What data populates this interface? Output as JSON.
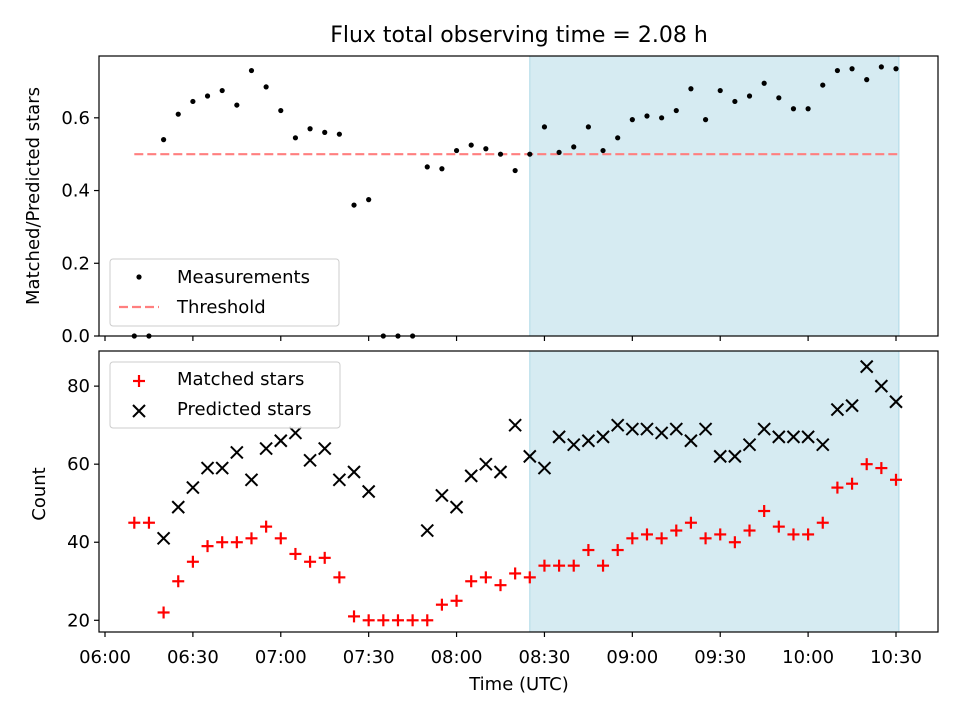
{
  "title": "Flux total observing time = 2.08 h",
  "xlabel": "Time (UTC)",
  "x_ticks": [
    "06:00",
    "06:30",
    "07:00",
    "07:30",
    "08:00",
    "08:30",
    "09:00",
    "09:30",
    "10:00",
    "10:30"
  ],
  "colors": {
    "shade": "#add8e6",
    "threshold": "#ff7f7f",
    "matched": "#ff0000",
    "predicted": "#000000"
  },
  "chart_data": [
    {
      "type": "scatter",
      "panel": "top",
      "ylabel": "Matched/Predicted stars",
      "xlim": [
        "06:00",
        "10:30"
      ],
      "ylim": [
        0,
        0.77
      ],
      "yticks": [
        "0.0",
        "0.2",
        "0.4",
        "0.6"
      ],
      "shaded_span": [
        "08:25",
        "10:31"
      ],
      "threshold": {
        "y": 0.5,
        "x": [
          "06:10",
          "10:31"
        ]
      },
      "legend": [
        "Measurements",
        "Threshold"
      ],
      "legend_position": "lower-left",
      "series": [
        {
          "name": "Measurements",
          "x": [
            "06:10",
            "06:15",
            "06:20",
            "06:25",
            "06:30",
            "06:35",
            "06:40",
            "06:45",
            "06:50",
            "06:55",
            "07:00",
            "07:05",
            "07:10",
            "07:15",
            "07:20",
            "07:25",
            "07:30",
            "07:35",
            "07:40",
            "07:45",
            "07:50",
            "07:55",
            "08:00",
            "08:05",
            "08:10",
            "08:15",
            "08:20",
            "08:25",
            "08:30",
            "08:35",
            "08:40",
            "08:45",
            "08:50",
            "08:55",
            "09:00",
            "09:05",
            "09:10",
            "09:15",
            "09:20",
            "09:25",
            "09:30",
            "09:35",
            "09:40",
            "09:45",
            "09:50",
            "09:55",
            "10:00",
            "10:05",
            "10:10",
            "10:15",
            "10:20",
            "10:25",
            "10:30"
          ],
          "y": [
            0.0,
            0.0,
            0.54,
            0.61,
            0.645,
            0.66,
            0.675,
            0.635,
            0.73,
            0.685,
            0.62,
            0.545,
            0.57,
            0.56,
            0.555,
            0.36,
            0.375,
            0.0,
            0.0,
            0.0,
            0.465,
            0.46,
            0.51,
            0.525,
            0.515,
            0.5,
            0.455,
            0.5,
            0.575,
            0.505,
            0.52,
            0.575,
            0.51,
            0.545,
            0.595,
            0.605,
            0.6,
            0.62,
            0.68,
            0.595,
            0.675,
            0.645,
            0.66,
            0.695,
            0.655,
            0.625,
            0.625,
            0.69,
            0.73,
            0.735,
            0.705,
            0.74,
            0.735
          ]
        }
      ]
    },
    {
      "type": "scatter",
      "panel": "bottom",
      "ylabel": "Count",
      "xlim": [
        "06:00",
        "10:30"
      ],
      "ylim": [
        17,
        89
      ],
      "yticks": [
        "20",
        "40",
        "60",
        "80"
      ],
      "shaded_span": [
        "08:25",
        "10:31"
      ],
      "legend": [
        "Matched stars",
        "Predicted stars"
      ],
      "legend_position": "upper-left",
      "series": [
        {
          "name": "Matched stars",
          "x": [
            "06:10",
            "06:15",
            "06:20",
            "06:25",
            "06:30",
            "06:35",
            "06:40",
            "06:45",
            "06:50",
            "06:55",
            "07:00",
            "07:05",
            "07:10",
            "07:15",
            "07:20",
            "07:25",
            "07:30",
            "07:35",
            "07:40",
            "07:45",
            "07:50",
            "07:55",
            "08:00",
            "08:05",
            "08:10",
            "08:15",
            "08:20",
            "08:25",
            "08:30",
            "08:35",
            "08:40",
            "08:45",
            "08:50",
            "08:55",
            "09:00",
            "09:05",
            "09:10",
            "09:15",
            "09:20",
            "09:25",
            "09:30",
            "09:35",
            "09:40",
            "09:45",
            "09:50",
            "09:55",
            "10:00",
            "10:05",
            "10:10",
            "10:15",
            "10:20",
            "10:25",
            "10:30"
          ],
          "y": [
            45,
            45,
            22,
            30,
            35,
            39,
            40,
            40,
            41,
            44,
            41,
            37,
            35,
            36,
            31,
            21,
            20,
            20,
            20,
            20,
            20,
            24,
            25,
            30,
            31,
            29,
            32,
            31,
            34,
            34,
            34,
            38,
            34,
            38,
            41,
            42,
            41,
            43,
            45,
            41,
            42,
            40,
            43,
            48,
            44,
            42,
            42,
            45,
            54,
            55,
            60,
            59,
            56
          ]
        },
        {
          "name": "Predicted stars",
          "x": [
            "06:20",
            "06:25",
            "06:30",
            "06:35",
            "06:40",
            "06:45",
            "06:50",
            "06:55",
            "07:00",
            "07:05",
            "07:10",
            "07:15",
            "07:20",
            "07:25",
            "07:30",
            "07:50",
            "07:55",
            "08:00",
            "08:05",
            "08:10",
            "08:15",
            "08:20",
            "08:25",
            "08:30",
            "08:35",
            "08:40",
            "08:45",
            "08:50",
            "08:55",
            "09:00",
            "09:05",
            "09:10",
            "09:15",
            "09:20",
            "09:25",
            "09:30",
            "09:35",
            "09:40",
            "09:45",
            "09:50",
            "09:55",
            "10:00",
            "10:05",
            "10:10",
            "10:15",
            "10:20",
            "10:25",
            "10:30"
          ],
          "y": [
            41,
            49,
            54,
            59,
            59,
            63,
            56,
            64,
            66,
            68,
            61,
            64,
            56,
            58,
            53,
            43,
            52,
            49,
            57,
            60,
            58,
            70,
            62,
            59,
            67,
            65,
            66,
            67,
            70,
            69,
            69,
            68,
            69,
            66,
            69,
            62,
            62,
            65,
            69,
            67,
            67,
            67,
            65,
            74,
            75,
            85,
            80,
            76
          ]
        }
      ]
    }
  ]
}
